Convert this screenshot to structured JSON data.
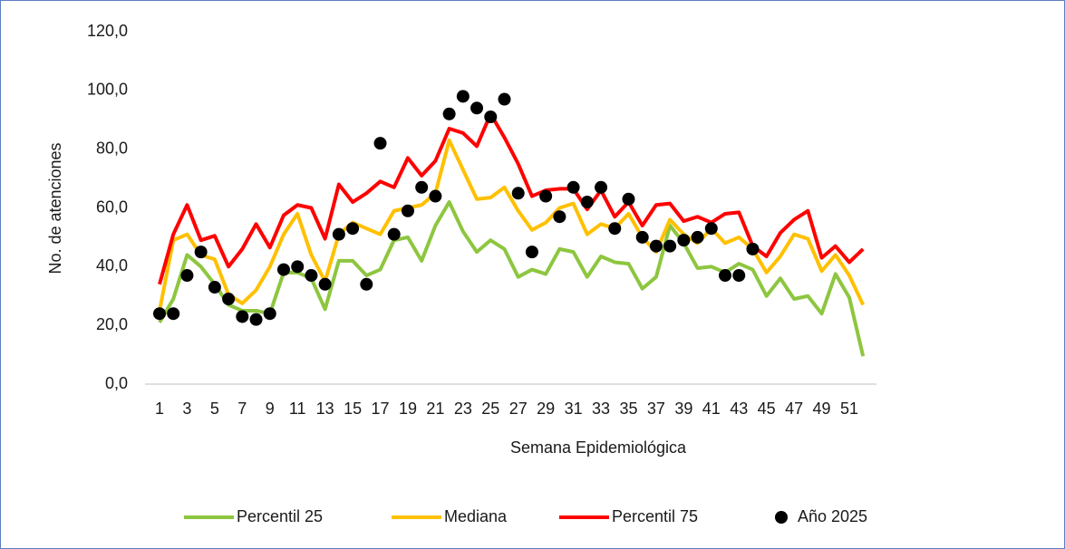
{
  "chart_data": {
    "type": "line",
    "xlabel": "Semana Epidemiológica",
    "ylabel": "No. de atenciones",
    "categories": [
      "1",
      null,
      "3",
      null,
      "5",
      null,
      "7",
      null,
      "9",
      null,
      "11",
      null,
      "13",
      null,
      "15",
      null,
      "17",
      null,
      "19",
      null,
      "21",
      null,
      "23",
      null,
      "25",
      null,
      "27",
      null,
      "29",
      null,
      "31",
      null,
      "33",
      null,
      "35",
      null,
      "37",
      null,
      "39",
      null,
      "41",
      null,
      "43",
      null,
      "45",
      null,
      "47",
      null,
      "49",
      null,
      "51",
      null
    ],
    "ylim": [
      0,
      120
    ],
    "yticks": [
      {
        "value": 0,
        "label": "0,0"
      },
      {
        "value": 20,
        "label": "20,0"
      },
      {
        "value": 40,
        "label": "40,0"
      },
      {
        "value": 60,
        "label": "60,0"
      },
      {
        "value": 80,
        "label": "80,0"
      },
      {
        "value": 100,
        "label": "100,0"
      },
      {
        "value": 120,
        "label": "120,0"
      }
    ],
    "grid": false,
    "legend": "bottom",
    "series": [
      {
        "name": "Percentil 25",
        "color": "#8dc63f",
        "style": "line",
        "values": [
          21,
          29,
          44,
          40,
          34,
          27,
          25,
          25,
          24,
          38,
          38,
          36,
          25.5,
          42,
          42,
          37,
          39,
          49,
          50,
          42,
          54,
          62,
          52,
          45,
          49,
          46,
          36.5,
          39,
          37.5,
          46,
          45,
          36.5,
          43.5,
          41.5,
          41,
          32.5,
          36.5,
          54,
          48,
          39.5,
          40,
          38,
          41,
          39,
          30,
          36,
          29,
          30,
          24,
          37.5,
          29.5,
          9.5
        ]
      },
      {
        "name": "Mediana",
        "color": "#ffc000",
        "style": "line",
        "values": [
          25,
          49,
          51,
          44,
          42.5,
          30.5,
          27.5,
          32,
          40,
          51,
          58,
          44,
          35,
          51,
          55,
          53,
          51,
          59,
          60,
          61,
          65,
          83,
          73,
          63,
          63.5,
          67,
          59,
          52.5,
          55,
          60,
          61.5,
          51,
          54.5,
          53,
          58,
          50,
          45,
          56,
          51,
          48,
          53,
          48,
          50,
          46,
          38,
          43.5,
          51,
          49.5,
          38.5,
          44,
          37,
          27
        ]
      },
      {
        "name": "Percentil 75",
        "color": "#ff0000",
        "style": "line",
        "values": [
          34,
          51,
          61,
          49,
          50.5,
          40,
          46,
          54.5,
          46.5,
          57.5,
          61,
          60,
          49.5,
          68,
          62,
          65,
          69,
          67,
          77,
          71,
          76,
          87,
          85.5,
          81,
          92,
          84,
          75,
          64,
          66,
          66.5,
          66.5,
          59.5,
          66,
          57,
          62,
          54,
          61,
          61.5,
          55.5,
          57,
          55,
          58,
          58.5,
          47,
          43.5,
          51.5,
          56,
          59,
          43,
          47,
          41.5,
          46
        ]
      },
      {
        "name": "Año 2025",
        "color": "#000000",
        "style": "markers",
        "values": [
          24,
          24,
          37,
          45,
          33,
          29,
          23,
          22,
          24,
          39,
          40,
          37,
          34,
          51,
          53,
          34,
          82,
          51,
          59,
          67,
          64,
          92,
          98,
          94,
          91,
          97,
          65,
          45,
          64,
          57,
          67,
          62,
          67,
          53,
          63,
          50,
          47,
          47,
          49,
          50,
          53,
          37,
          37,
          46,
          null,
          null,
          null,
          null,
          null,
          null,
          null,
          null
        ]
      }
    ]
  }
}
